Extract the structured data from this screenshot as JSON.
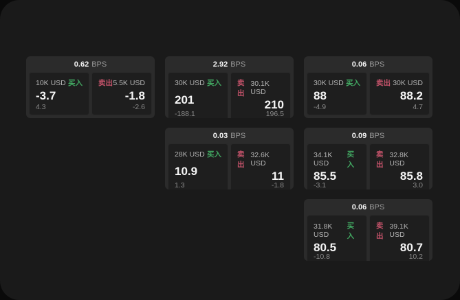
{
  "labels": {
    "bps": "BPS",
    "buy": "买入",
    "sell": "卖出"
  },
  "colors": {
    "page_bg": "#0a0a0a",
    "panel_bg": "#1a1a1a",
    "card_bg": "#2b2b2b",
    "tile_bg": "#1e1e1e",
    "buy_green": "#42a862",
    "sell_red": "#c4536a"
  },
  "cards": [
    {
      "bps": "0.62",
      "row": 1,
      "col": 1,
      "buy": {
        "size": "10K USD",
        "price": "-3.7",
        "delta": "4.3"
      },
      "sell": {
        "size": "5.5K USD",
        "price": "-1.8",
        "delta": "-2.6"
      }
    },
    {
      "bps": "2.92",
      "row": 1,
      "col": 2,
      "buy": {
        "size": "30K USD",
        "price": "201",
        "delta": "-188.1"
      },
      "sell": {
        "size": "30.1K USD",
        "price": "210",
        "delta": "196.5"
      }
    },
    {
      "bps": "0.06",
      "row": 1,
      "col": 3,
      "buy": {
        "size": "30K USD",
        "price": "88",
        "delta": "-4.9"
      },
      "sell": {
        "size": "30K USD",
        "price": "88.2",
        "delta": "4.7"
      }
    },
    {
      "bps": "0.03",
      "row": 2,
      "col": 2,
      "buy": {
        "size": "28K USD",
        "price": "10.9",
        "delta": "1.3"
      },
      "sell": {
        "size": "32.6K USD",
        "price": "11",
        "delta": "-1.8"
      }
    },
    {
      "bps": "0.09",
      "row": 2,
      "col": 3,
      "buy": {
        "size": "34.1K USD",
        "price": "85.5",
        "delta": "-3.1"
      },
      "sell": {
        "size": "32.8K USD",
        "price": "85.8",
        "delta": "3.0"
      }
    },
    {
      "bps": "0.06",
      "row": 3,
      "col": 3,
      "buy": {
        "size": "31.8K USD",
        "price": "80.5",
        "delta": "-10.8"
      },
      "sell": {
        "size": "39.1K USD",
        "price": "80.7",
        "delta": "10.2"
      }
    }
  ]
}
